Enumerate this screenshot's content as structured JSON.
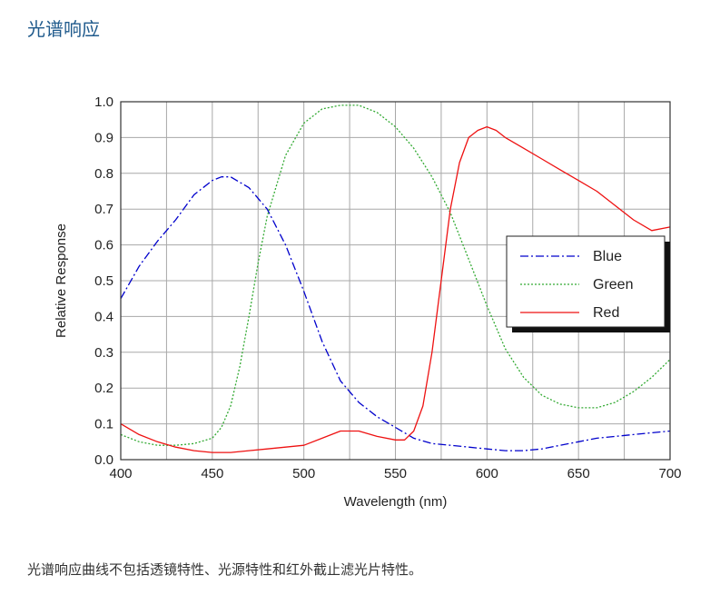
{
  "page": {
    "title": "光谱响应",
    "footnote": "光谱响应曲线不包括透镜特性、光源特性和红外截止滤光片特性。"
  },
  "chart_data": {
    "type": "line",
    "title": "",
    "xlabel": "Wavelength (nm)",
    "ylabel": "Relative Response",
    "xlim": [
      400,
      700
    ],
    "ylim": [
      0.0,
      1.0
    ],
    "x_ticks": [
      400,
      450,
      500,
      550,
      600,
      650,
      700
    ],
    "y_ticks": [
      "0.0",
      "0.1",
      "0.2",
      "0.3",
      "0.4",
      "0.5",
      "0.6",
      "0.7",
      "0.8",
      "0.9",
      "1.0"
    ],
    "grid": true,
    "legend_position": "right",
    "series": [
      {
        "name": "Blue",
        "color": "#0000cc",
        "dash": "dash-dot",
        "x": [
          400,
          410,
          420,
          430,
          440,
          450,
          455,
          460,
          470,
          480,
          490,
          500,
          510,
          520,
          530,
          540,
          550,
          560,
          570,
          580,
          590,
          600,
          610,
          620,
          630,
          640,
          650,
          660,
          670,
          680,
          690,
          700
        ],
        "y": [
          0.45,
          0.54,
          0.61,
          0.67,
          0.74,
          0.78,
          0.79,
          0.79,
          0.76,
          0.7,
          0.6,
          0.47,
          0.33,
          0.22,
          0.16,
          0.12,
          0.09,
          0.06,
          0.045,
          0.04,
          0.035,
          0.03,
          0.025,
          0.025,
          0.03,
          0.04,
          0.05,
          0.06,
          0.065,
          0.07,
          0.075,
          0.08
        ]
      },
      {
        "name": "Green",
        "color": "#33aa33",
        "dash": "dotted",
        "x": [
          400,
          410,
          420,
          430,
          440,
          450,
          455,
          460,
          465,
          470,
          475,
          480,
          490,
          500,
          510,
          520,
          530,
          540,
          550,
          560,
          570,
          580,
          590,
          600,
          610,
          620,
          630,
          640,
          650,
          660,
          670,
          680,
          690,
          700
        ],
        "y": [
          0.07,
          0.05,
          0.04,
          0.04,
          0.045,
          0.06,
          0.09,
          0.15,
          0.26,
          0.4,
          0.55,
          0.68,
          0.85,
          0.94,
          0.98,
          0.99,
          0.99,
          0.97,
          0.93,
          0.87,
          0.79,
          0.69,
          0.56,
          0.43,
          0.31,
          0.23,
          0.18,
          0.155,
          0.145,
          0.145,
          0.16,
          0.19,
          0.23,
          0.28
        ]
      },
      {
        "name": "Red",
        "color": "#ee1111",
        "dash": "solid",
        "x": [
          400,
          410,
          420,
          430,
          440,
          450,
          460,
          470,
          480,
          490,
          500,
          510,
          520,
          530,
          540,
          550,
          555,
          560,
          565,
          570,
          575,
          580,
          585,
          590,
          595,
          600,
          605,
          610,
          620,
          630,
          640,
          650,
          660,
          670,
          680,
          690,
          700
        ],
        "y": [
          0.1,
          0.07,
          0.05,
          0.035,
          0.025,
          0.02,
          0.02,
          0.025,
          0.03,
          0.035,
          0.04,
          0.06,
          0.08,
          0.08,
          0.065,
          0.055,
          0.055,
          0.08,
          0.15,
          0.3,
          0.5,
          0.7,
          0.83,
          0.9,
          0.92,
          0.93,
          0.92,
          0.9,
          0.87,
          0.84,
          0.81,
          0.78,
          0.75,
          0.71,
          0.67,
          0.64,
          0.65
        ]
      }
    ]
  }
}
